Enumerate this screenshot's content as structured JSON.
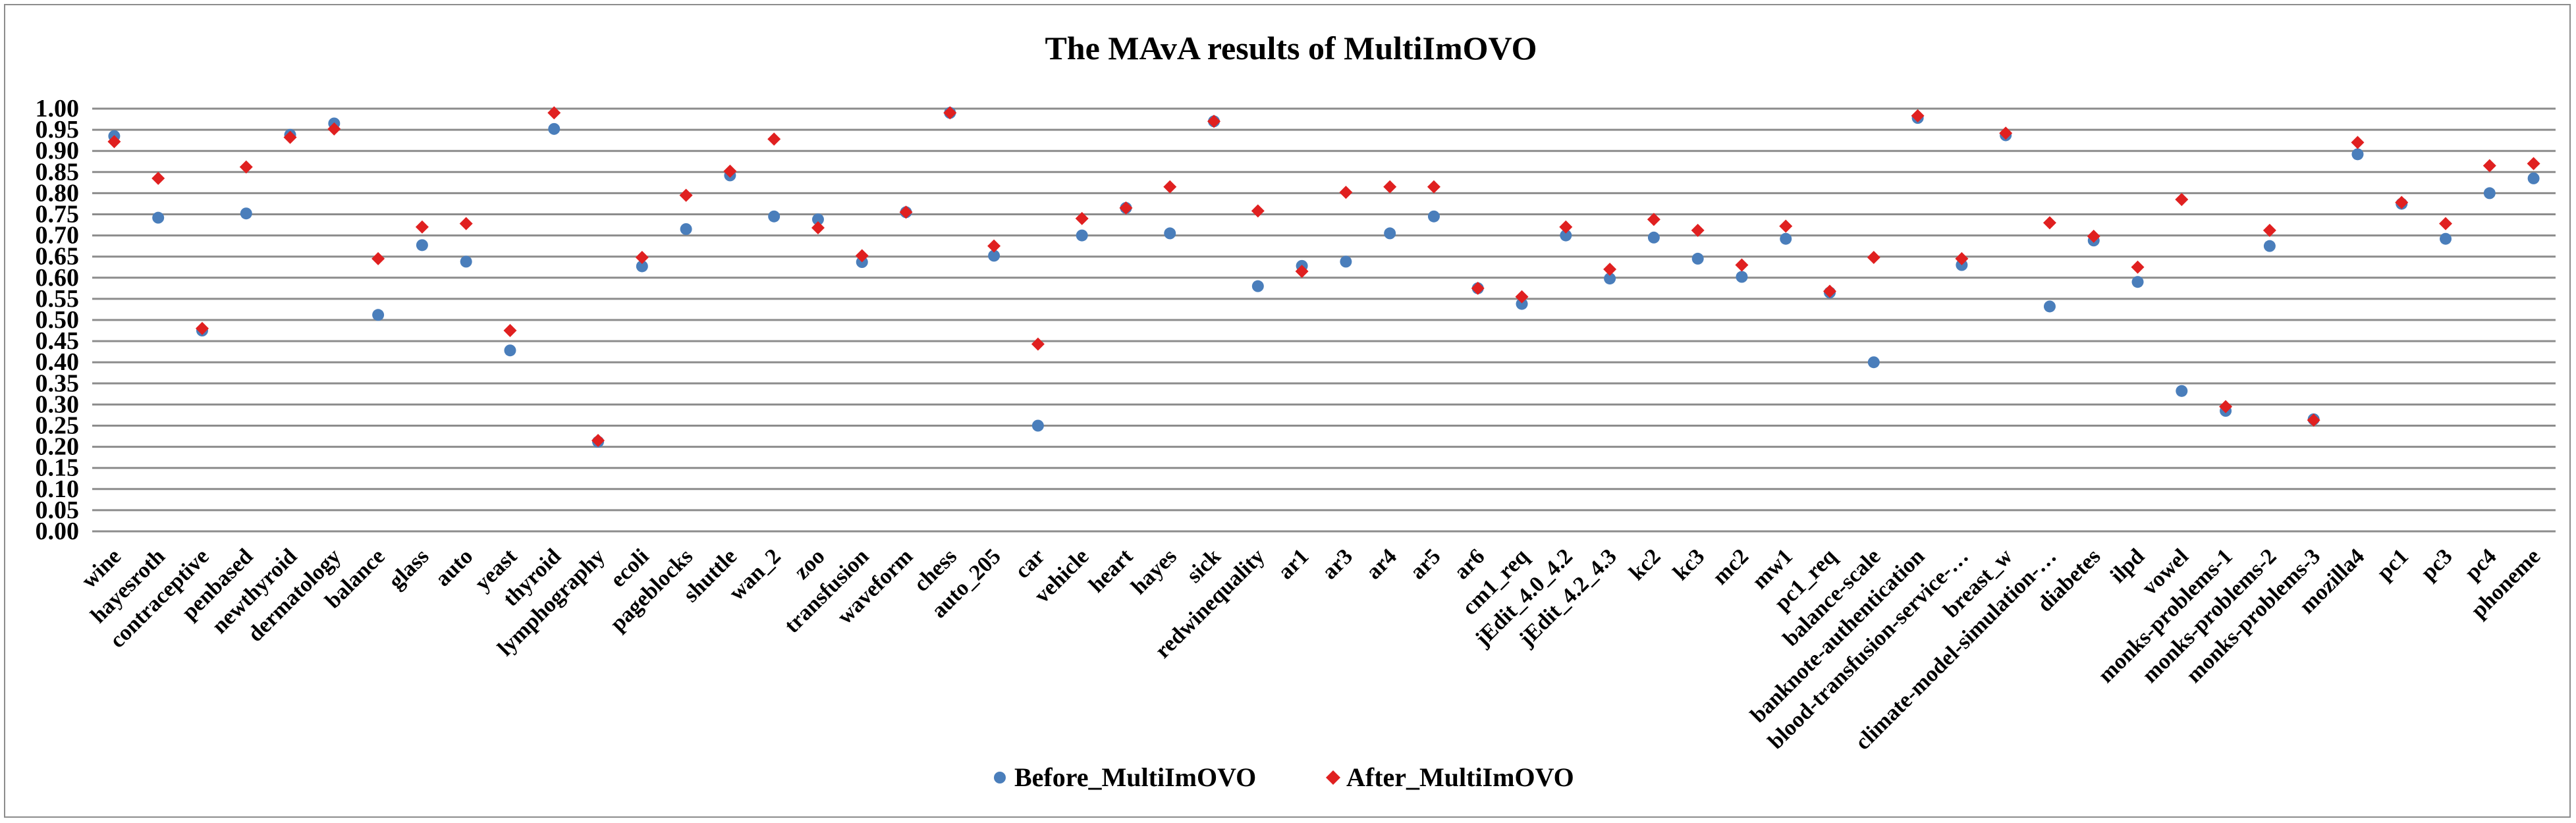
{
  "chart_data": {
    "type": "scatter",
    "title": "The MAvA results of MultiImOVO",
    "xlabel": "",
    "ylabel": "",
    "ylim": [
      0,
      1
    ],
    "yticks": [
      "0.00",
      "0.05",
      "0.10",
      "0.15",
      "0.20",
      "0.25",
      "0.30",
      "0.35",
      "0.40",
      "0.45",
      "0.50",
      "0.55",
      "0.60",
      "0.65",
      "0.70",
      "0.75",
      "0.80",
      "0.85",
      "0.90",
      "0.95",
      "1.00"
    ],
    "grid": true,
    "legend_position": "bottom",
    "categories": [
      "wine",
      "hayesroth",
      "contraceptive",
      "penbased",
      "newthyroid",
      "dermatology",
      "balance",
      "glass",
      "auto",
      "yeast",
      "thyroid",
      "lymphography",
      "ecoli",
      "pageblocks",
      "shuttle",
      "wan_2",
      "zoo",
      "transfusion",
      "waveform",
      "chess",
      "auto_205",
      "car",
      "vehicle",
      "heart",
      "hayes",
      "sick",
      "redwinequality",
      "ar1",
      "ar3",
      "ar4",
      "ar5",
      "ar6",
      "cm1_req",
      "jEdit_4.0_4.2",
      "jEdit_4.2_4.3",
      "kc2",
      "kc3",
      "mc2",
      "mw1",
      "pc1_req",
      "balance-scale",
      "banknote-authentication",
      "blood-transfusion-service-…",
      "breast_w",
      "climate-model-simulation-…",
      "diabetes",
      "ilpd",
      "vowel",
      "monks-problems-1",
      "monks-problems-2",
      "monks-problems-3",
      "mozilla4",
      "pc1",
      "pc3",
      "pc4",
      "phoneme"
    ],
    "series": [
      {
        "name": "Before_MultiImOVO",
        "color": "#4a7ebb",
        "marker": "circle",
        "values": [
          0.935,
          0.742,
          0.475,
          0.752,
          0.938,
          0.965,
          0.512,
          0.677,
          0.638,
          0.428,
          0.952,
          0.212,
          0.627,
          0.715,
          0.842,
          0.745,
          0.738,
          0.637,
          0.755,
          0.99,
          0.652,
          0.25,
          0.7,
          0.765,
          0.705,
          0.97,
          0.58,
          0.628,
          0.638,
          0.705,
          0.745,
          0.575,
          0.538,
          0.7,
          0.598,
          0.695,
          0.645,
          0.602,
          0.692,
          0.565,
          0.4,
          0.978,
          0.63,
          0.937,
          0.532,
          0.688,
          0.59,
          0.332,
          0.285,
          0.675,
          0.265,
          0.892,
          0.775,
          0.692,
          0.8,
          0.835
        ]
      },
      {
        "name": "After_MultiImOVO",
        "color": "#e02020",
        "marker": "diamond",
        "values": [
          0.922,
          0.835,
          0.48,
          0.862,
          0.932,
          0.952,
          0.645,
          0.72,
          0.728,
          0.475,
          0.99,
          0.215,
          0.648,
          0.795,
          0.852,
          0.928,
          0.718,
          0.652,
          0.755,
          0.99,
          0.675,
          0.443,
          0.74,
          0.765,
          0.815,
          0.97,
          0.758,
          0.615,
          0.802,
          0.815,
          0.815,
          0.575,
          0.555,
          0.72,
          0.62,
          0.738,
          0.712,
          0.63,
          0.722,
          0.568,
          0.648,
          0.983,
          0.645,
          0.942,
          0.73,
          0.698,
          0.625,
          0.785,
          0.295,
          0.712,
          0.263,
          0.92,
          0.778,
          0.728,
          0.865,
          0.87
        ]
      }
    ]
  }
}
